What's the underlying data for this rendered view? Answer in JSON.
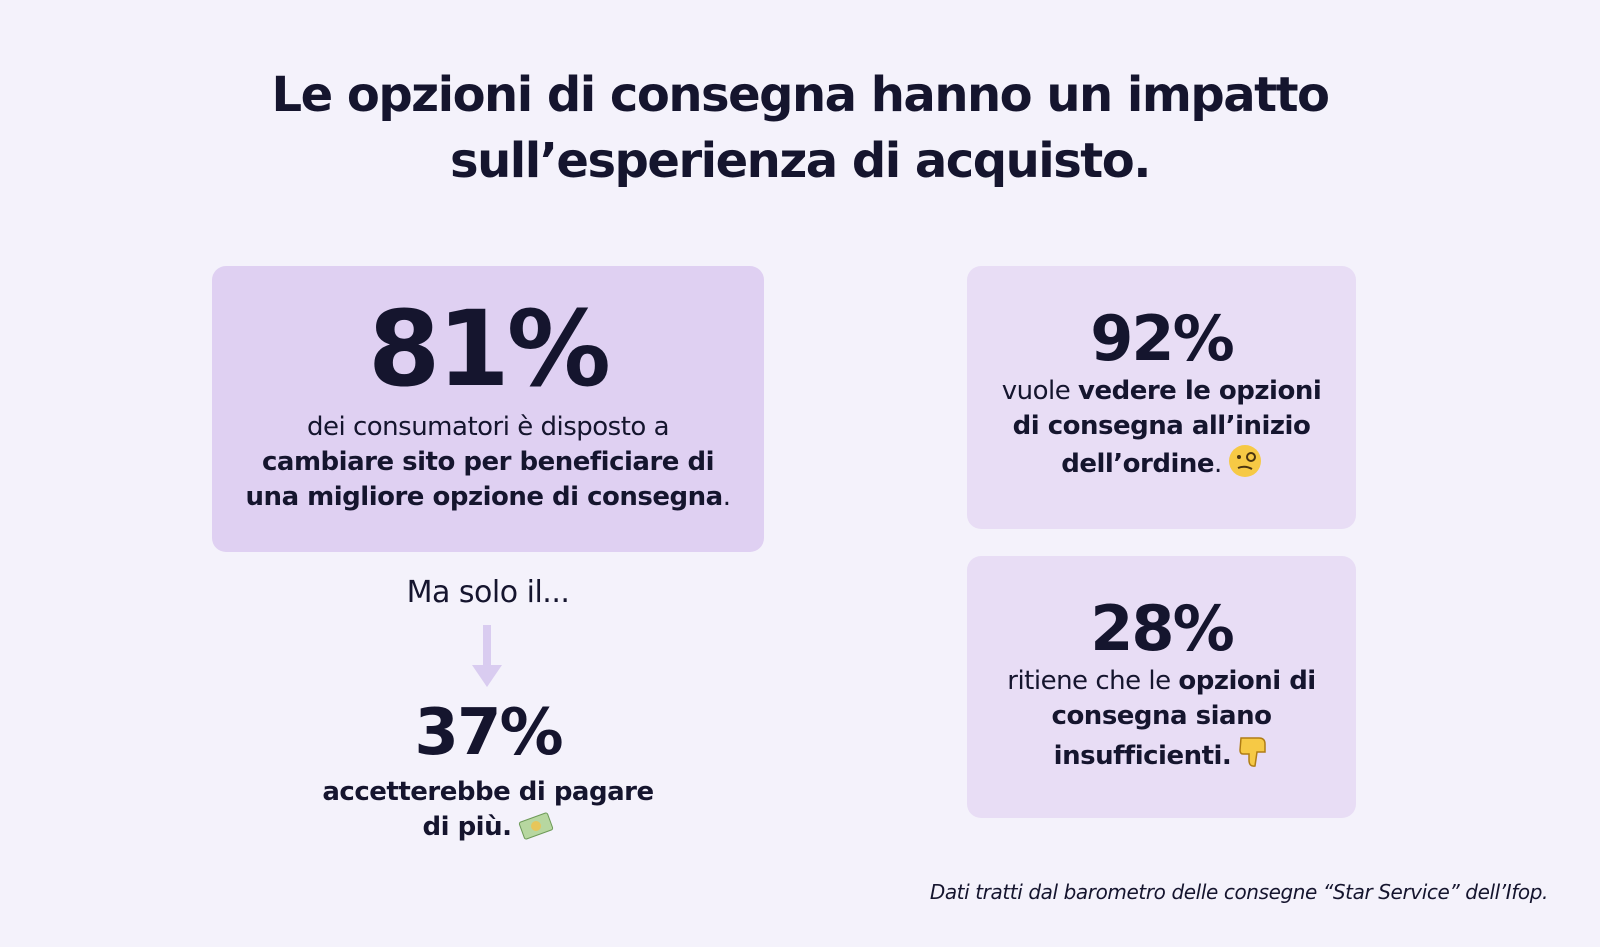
{
  "header": {
    "title": "Le opzioni di consegna hanno un impatto sull’esperienza di acquisto."
  },
  "main_stat": {
    "value": "81%",
    "plain": "dei consumatori è disposto a",
    "bold": "cambiare sito per beneficiare di una migliore opzione di consegna",
    "end": "."
  },
  "transition": "Ma solo il...",
  "sub_stat": {
    "value": "37%",
    "bold": "accetterebbe di pagare di più."
  },
  "side_stats": [
    {
      "value": "92%",
      "plain": "vuole",
      "bold": "vedere le opzioni di consegna all’inizio dell’ordine",
      "end": "."
    },
    {
      "value": "28%",
      "plain": "ritiene che le",
      "bold": "opzioni di consegna siano insufficienti."
    }
  ],
  "footer": {
    "source": "Dati tratti dal barometro delle consegne “Star Service” dell’Ifop."
  }
}
